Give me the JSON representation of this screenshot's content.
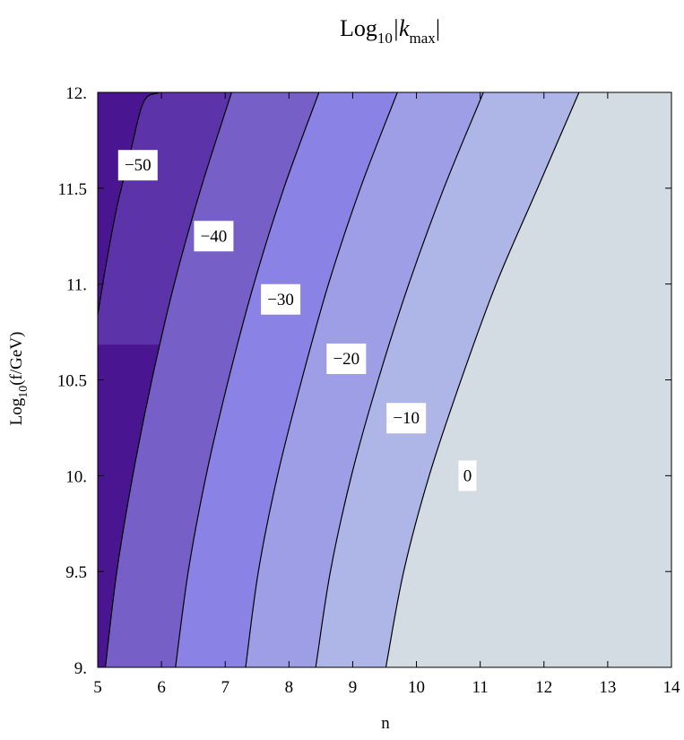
{
  "chart_data": {
    "type": "contour",
    "title": {
      "base": "Log",
      "sub": "10",
      "mid": "|k",
      "sub2": "max",
      "end": "|"
    },
    "xlabel": "n",
    "ylabel": {
      "base": "Log",
      "sub": "10",
      "rest": "(f/GeV)"
    },
    "xlim": [
      5,
      14
    ],
    "ylim": [
      9,
      12
    ],
    "x_ticks": [
      {
        "value": 5,
        "label": "5"
      },
      {
        "value": 6,
        "label": "6"
      },
      {
        "value": 7,
        "label": "7"
      },
      {
        "value": 8,
        "label": "8"
      },
      {
        "value": 9,
        "label": "9"
      },
      {
        "value": 10,
        "label": "10"
      },
      {
        "value": 11,
        "label": "11"
      },
      {
        "value": 12,
        "label": "12"
      },
      {
        "value": 13,
        "label": "13"
      },
      {
        "value": 14,
        "label": "14"
      }
    ],
    "y_ticks": [
      {
        "value": 9,
        "label": "9."
      },
      {
        "value": 9.5,
        "label": "9.5"
      },
      {
        "value": 10,
        "label": "10."
      },
      {
        "value": 10.5,
        "label": "10.5"
      },
      {
        "value": 11,
        "label": "11."
      },
      {
        "value": 11.5,
        "label": "11.5"
      },
      {
        "value": 12,
        "label": "12."
      }
    ],
    "contours": [
      {
        "level": -50,
        "label": "−50",
        "points": [
          [
            5.0,
            10.84
          ],
          [
            5.13,
            11.1
          ],
          [
            5.3,
            11.4
          ],
          [
            5.5,
            11.67
          ],
          [
            5.72,
            11.95
          ],
          [
            5.97,
            12.0
          ]
        ],
        "label_at": [
          5.63,
          11.62
        ]
      },
      {
        "level": -40,
        "label": "−40",
        "points": [
          [
            5.12,
            9.0
          ],
          [
            5.3,
            9.5
          ],
          [
            5.55,
            10.0
          ],
          [
            5.85,
            10.5
          ],
          [
            6.2,
            11.0
          ],
          [
            6.62,
            11.5
          ],
          [
            7.1,
            12.0
          ]
        ],
        "label_at": [
          6.82,
          11.25
        ]
      },
      {
        "level": -30,
        "label": "−30",
        "points": [
          [
            6.22,
            9.0
          ],
          [
            6.42,
            9.5
          ],
          [
            6.7,
            10.0
          ],
          [
            7.05,
            10.5
          ],
          [
            7.45,
            11.0
          ],
          [
            7.92,
            11.5
          ],
          [
            8.47,
            12.0
          ]
        ],
        "label_at": [
          7.87,
          10.92
        ]
      },
      {
        "level": -20,
        "label": "−20",
        "points": [
          [
            7.32,
            9.0
          ],
          [
            7.52,
            9.5
          ],
          [
            7.82,
            10.0
          ],
          [
            8.2,
            10.5
          ],
          [
            8.62,
            11.0
          ],
          [
            9.12,
            11.5
          ],
          [
            9.7,
            12.0
          ]
        ],
        "label_at": [
          8.9,
          10.61
        ]
      },
      {
        "level": -10,
        "label": "−10",
        "points": [
          [
            8.42,
            9.0
          ],
          [
            8.65,
            9.5
          ],
          [
            8.98,
            10.0
          ],
          [
            9.4,
            10.5
          ],
          [
            9.88,
            11.0
          ],
          [
            10.43,
            11.5
          ],
          [
            11.05,
            12.0
          ]
        ],
        "label_at": [
          9.84,
          10.3
        ]
      },
      {
        "level": 0,
        "label": "0",
        "points": [
          [
            9.52,
            9.0
          ],
          [
            9.8,
            9.5
          ],
          [
            10.2,
            10.0
          ],
          [
            10.7,
            10.5
          ],
          [
            11.25,
            11.0
          ],
          [
            11.9,
            11.5
          ],
          [
            12.55,
            12.0
          ]
        ],
        "label_at": [
          10.8,
          10.0
        ]
      }
    ],
    "band_colors": [
      "#4a1591",
      "#5d33aa",
      "#7660c8",
      "#8a82e4",
      "#9d9ee6",
      "#aeb5e7",
      "#d3dce2"
    ],
    "grid": false
  }
}
